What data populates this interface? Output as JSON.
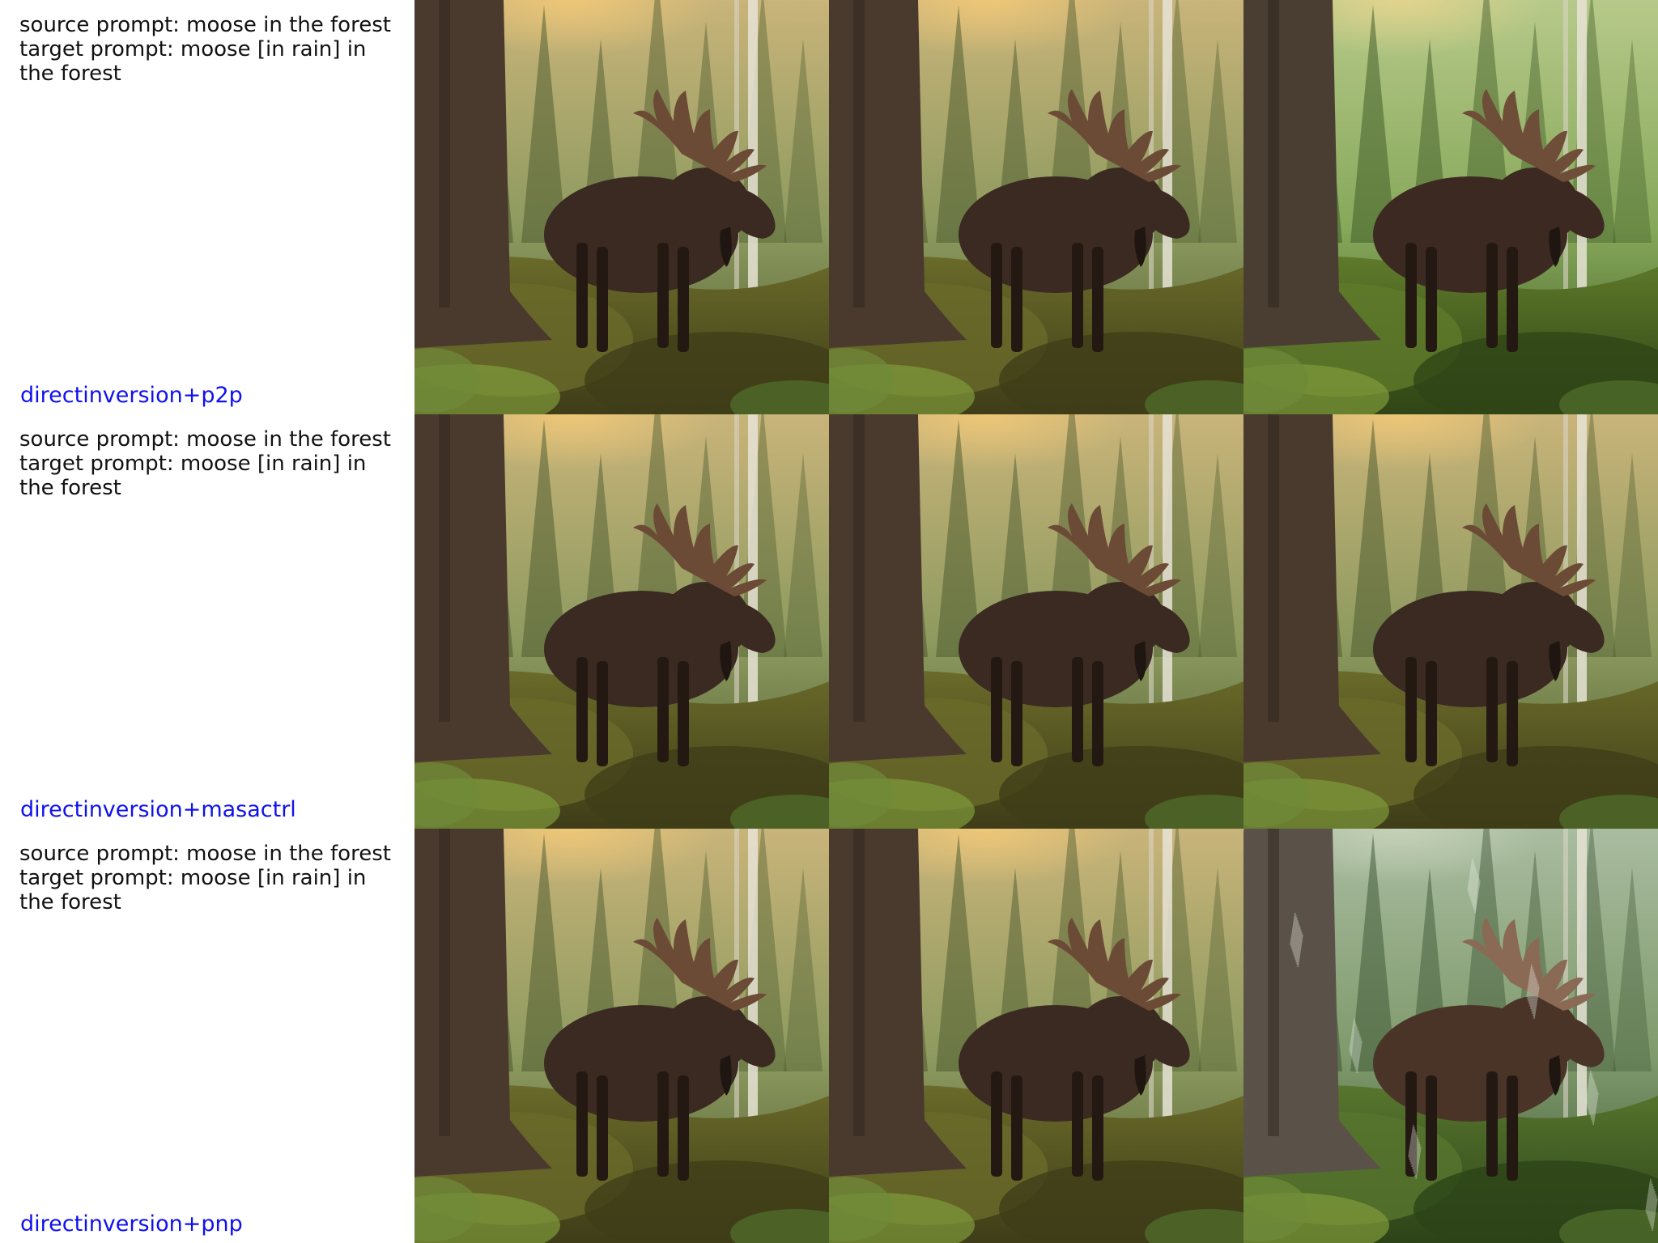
{
  "rows": [
    {
      "source_prompt": "source prompt: moose in the forest",
      "target_prompt": "target prompt: moose [in rain] in the forest",
      "method": "directinversion+p2p",
      "images": [
        {
          "name": "source-image",
          "palette": "warm"
        },
        {
          "name": "reconstruction-image",
          "palette": "warm"
        },
        {
          "name": "edited-image",
          "palette": "green"
        }
      ]
    },
    {
      "source_prompt": "source prompt: moose in the forest",
      "target_prompt": "target prompt: moose [in rain] in the forest",
      "method": "directinversion+masactrl",
      "images": [
        {
          "name": "source-image",
          "palette": "warm"
        },
        {
          "name": "reconstruction-image",
          "palette": "warm"
        },
        {
          "name": "edited-image",
          "palette": "warm"
        }
      ]
    },
    {
      "source_prompt": "source prompt: moose in the forest",
      "target_prompt": "target prompt: moose [in rain] in the forest",
      "method": "directinversion+pnp",
      "images": [
        {
          "name": "source-image",
          "palette": "warm"
        },
        {
          "name": "reconstruction-image",
          "palette": "warm"
        },
        {
          "name": "edited-image",
          "palette": "rain"
        }
      ]
    }
  ],
  "colors": {
    "method_text": "#1111ee",
    "prompt_text": "#111111"
  }
}
